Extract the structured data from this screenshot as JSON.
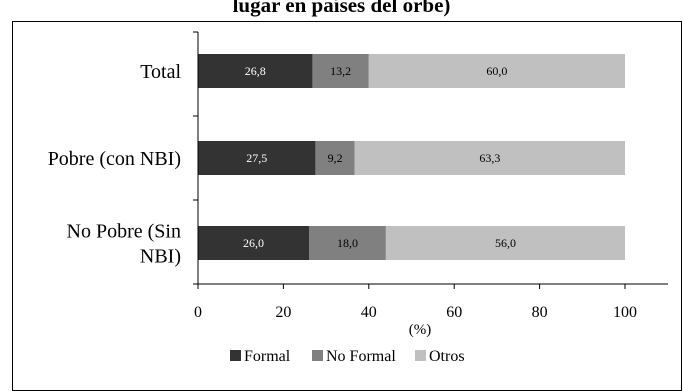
{
  "title_fragment": "lugar en países del orbe)",
  "chart_data": {
    "type": "bar",
    "orientation": "horizontal",
    "stacked": true,
    "title": "",
    "xlabel": "(%)",
    "ylabel": "",
    "xlim": [
      0,
      100
    ],
    "xticks": [
      "0",
      "20",
      "40",
      "60",
      "80",
      "100"
    ],
    "categories": [
      [
        "Total"
      ],
      [
        "Pobre (con NBI)"
      ],
      [
        "No Pobre (Sin",
        "NBI)"
      ]
    ],
    "series": [
      {
        "name": "Formal",
        "values": [
          26.8,
          27.5,
          26.0
        ],
        "labels": [
          "26,8",
          "27,5",
          "26,0"
        ],
        "color": "#333333",
        "label_color": "#ffffff"
      },
      {
        "name": "No Formal",
        "values": [
          13.2,
          9.2,
          18.0
        ],
        "labels": [
          "13,2",
          "9,2",
          "18,0"
        ],
        "color": "#808080",
        "label_color": "#000000"
      },
      {
        "name": "Otros",
        "values": [
          60.0,
          63.3,
          56.0
        ],
        "labels": [
          "60,0",
          "63,3",
          "56,0"
        ],
        "color": "#c0c0c0",
        "label_color": "#000000"
      }
    ],
    "grid": false,
    "legend_position": "bottom"
  }
}
